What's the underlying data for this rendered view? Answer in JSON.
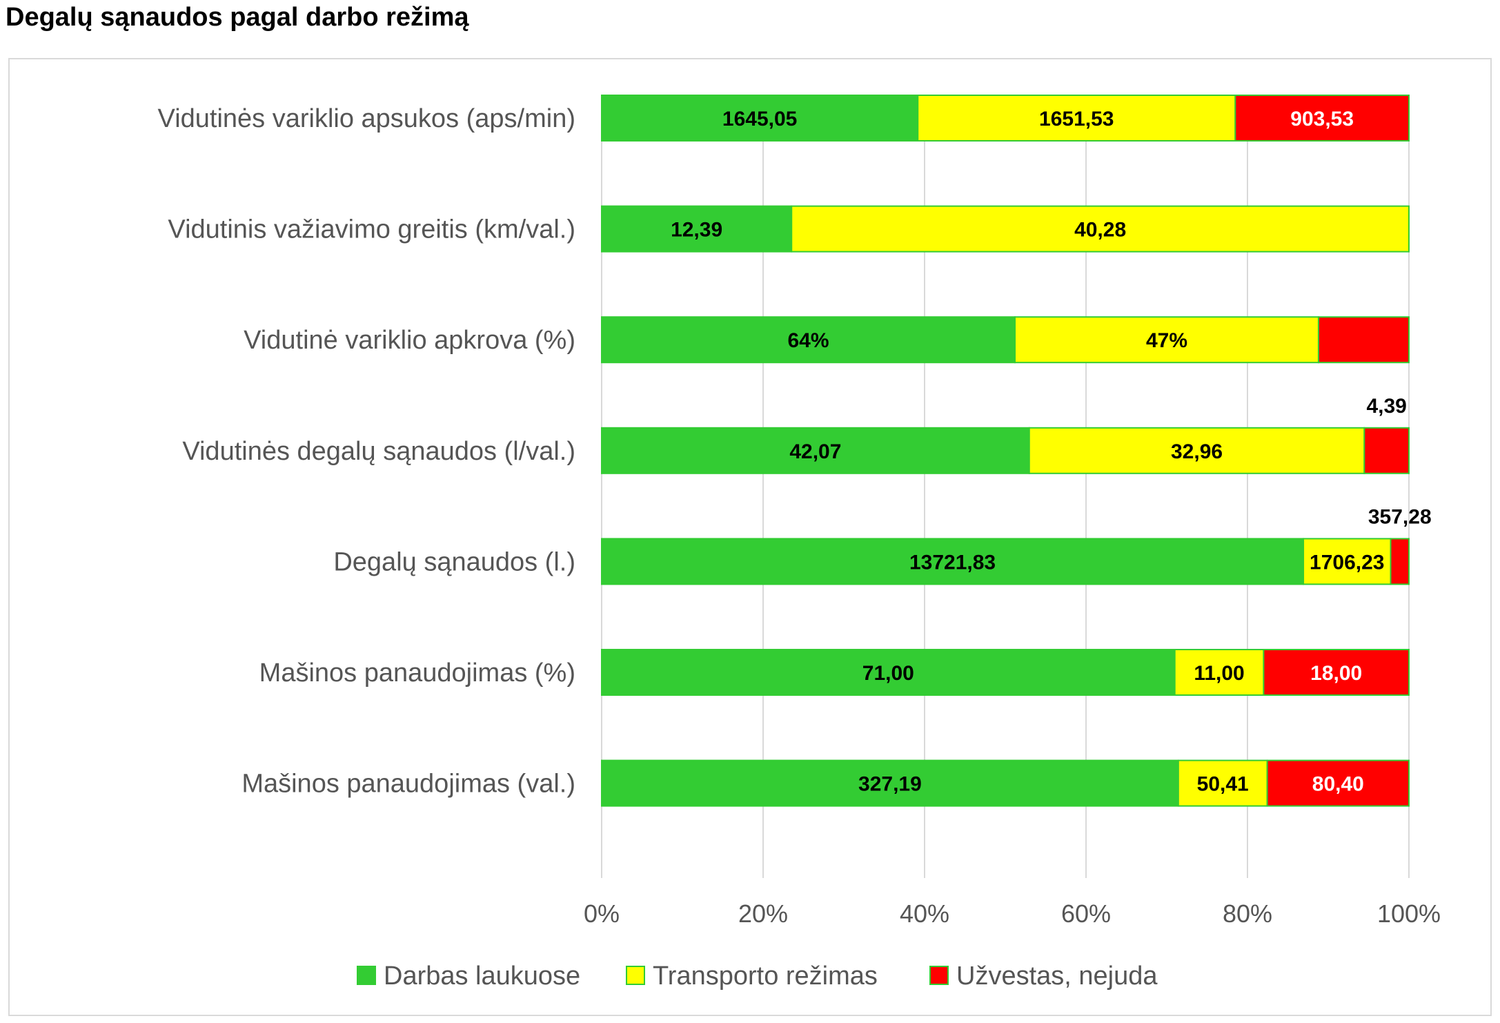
{
  "page": {
    "title": "Degalų sąnaudos pagal darbo režimą"
  },
  "chart_data": {
    "type": "bar",
    "orientation": "horizontal",
    "stacking": "percent",
    "title": "Degalų sąnaudos pagal darbo režimą",
    "xlim": [
      0,
      100
    ],
    "x_ticks": [
      "0%",
      "20%",
      "40%",
      "60%",
      "80%",
      "100%"
    ],
    "grid": true,
    "legend_position": "bottom",
    "categories": [
      "Vidutinės variklio apsukos (aps/min)",
      "Vidutinis važiavimo greitis (km/val.)",
      "Vidutinė variklio apkrova (%)",
      "Vidutinės degalų sąnaudos (l/val.)",
      "Degalų sąnaudos (l.)",
      "Mašinos panaudojimas (%)",
      "Mašinos panaudojimas (val.)"
    ],
    "series": [
      {
        "name": "Darbas laukuose",
        "color": "#33cc33",
        "label_color": "#000000",
        "values": [
          1645.05,
          12.39,
          64,
          42.07,
          13721.83,
          71.0,
          327.19
        ],
        "labels": [
          "1645,05",
          "12,39",
          "64%",
          "42,07",
          "13721,83",
          "71,00",
          "327,19"
        ]
      },
      {
        "name": "Transporto režimas",
        "color": "#ffff00",
        "label_color": "#000000",
        "values": [
          1651.53,
          40.28,
          47,
          32.96,
          1706.23,
          11.0,
          50.41
        ],
        "labels": [
          "1651,53",
          "40,28",
          "47%",
          "32,96",
          "1706,23",
          "11,00",
          "50,41"
        ]
      },
      {
        "name": "Užvestas, nejuda",
        "color": "#ff0000",
        "label_color": "#ffffff",
        "values": [
          903.53,
          0,
          14,
          4.39,
          357.28,
          18.0,
          80.4
        ],
        "labels": [
          "903,53",
          "",
          "",
          "4,39",
          "357,28",
          "18,00",
          "80,40"
        ]
      }
    ]
  }
}
